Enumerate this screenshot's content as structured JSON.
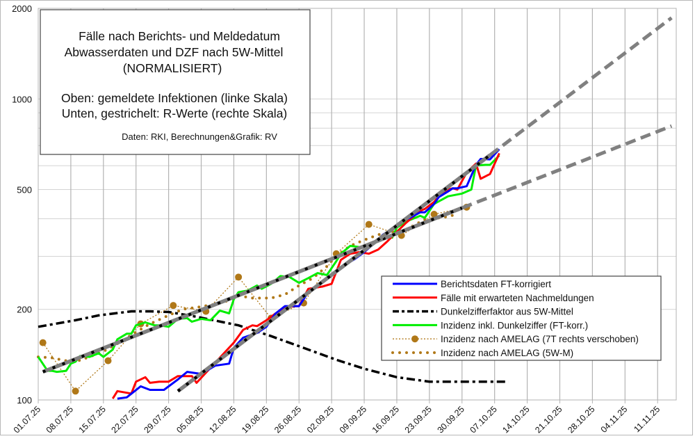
{
  "chart_data": {
    "type": "line",
    "yscale": "log",
    "ylim": [
      100,
      2000
    ],
    "xlim": [
      "01.07.25",
      "15.11.25"
    ],
    "grid": true,
    "legend_placement": "bottom-right",
    "y_ticks": [
      100,
      200,
      500,
      1000,
      2000
    ],
    "x_ticks": [
      "01.07.25",
      "08.07.25",
      "15.07.25",
      "22.07.25",
      "29.07.25",
      "05.08.25",
      "12.08.25",
      "19.08.25",
      "26.08.25",
      "02.09.25",
      "09.09.25",
      "16.09.25",
      "23.09.25",
      "30.09.25",
      "07.10.25",
      "14.10.25",
      "21.10.25",
      "28.10.25",
      "04.11.25",
      "11.11.25"
    ],
    "title_box": {
      "lines": [
        "Fälle nach Berichts- und Meldedatum",
        "Abwasserdaten und DZF nach 5W-Mittel",
        "(NORMALISIERT)",
        "",
        "Oben: gemeldete Infektionen (linke Skala)",
        "Unten, gestrichelt: R-Werte (rechte Skala)"
      ],
      "credit": "Daten: RKI, Berechnungen&Grafik: RV"
    },
    "series": [
      {
        "name": "Berichtsdaten FT-korrigiert",
        "color": "#0000ff",
        "style": "solid",
        "points": [
          [
            "18.07.25",
            101
          ],
          [
            "20.07.25",
            102
          ],
          [
            "23.07.25",
            111
          ],
          [
            "25.07.25",
            108
          ],
          [
            "28.07.25",
            108
          ],
          [
            "31.07.25",
            117
          ],
          [
            "02.08.25",
            124
          ],
          [
            "05.08.25",
            122
          ],
          [
            "08.08.25",
            130
          ],
          [
            "11.08.25",
            132
          ],
          [
            "12.08.25",
            149
          ],
          [
            "14.08.25",
            161
          ],
          [
            "17.08.25",
            167
          ],
          [
            "19.08.25",
            175
          ],
          [
            "21.08.25",
            194
          ],
          [
            "23.08.25",
            205
          ],
          [
            "26.08.25",
            205
          ],
          [
            "28.08.25",
            228
          ],
          [
            "30.08.25",
            240
          ],
          [
            "02.09.25",
            260
          ],
          [
            "05.09.25",
            282
          ],
          [
            "07.09.25",
            294
          ],
          [
            "09.09.25",
            310
          ],
          [
            "11.09.25",
            330
          ],
          [
            "13.09.25",
            354
          ],
          [
            "16.09.25",
            378
          ],
          [
            "18.09.25",
            398
          ],
          [
            "19.09.25",
            404
          ],
          [
            "21.09.25",
            420
          ],
          [
            "22.09.25",
            420
          ],
          [
            "24.09.25",
            448
          ],
          [
            "25.09.25",
            472
          ],
          [
            "27.09.25",
            493
          ],
          [
            "28.09.25",
            505
          ],
          [
            "29.09.25",
            505
          ],
          [
            "01.10.25",
            513
          ],
          [
            "03.10.25",
            604
          ],
          [
            "04.10.25",
            632
          ],
          [
            "06.10.25",
            630
          ],
          [
            "08.10.25",
            681
          ]
        ]
      },
      {
        "name": "Fälle mit erwarteten Nachmeldungen",
        "color": "#ff0000",
        "style": "solid",
        "points": [
          [
            "17.07.25",
            101
          ],
          [
            "18.07.25",
            107
          ],
          [
            "21.07.25",
            105
          ],
          [
            "22.07.25",
            115
          ],
          [
            "24.07.25",
            119
          ],
          [
            "25.07.25",
            114
          ],
          [
            "27.07.25",
            115
          ],
          [
            "29.07.25",
            115
          ],
          [
            "31.07.25",
            120
          ],
          [
            "03.08.25",
            120
          ],
          [
            "04.08.25",
            114
          ],
          [
            "12.08.25",
            155
          ],
          [
            "14.08.25",
            171
          ],
          [
            "16.08.25",
            177
          ],
          [
            "17.08.25",
            176
          ],
          [
            "19.08.25",
            184
          ],
          [
            "21.08.25",
            194
          ],
          [
            "23.08.25",
            202
          ],
          [
            "25.08.25",
            205
          ],
          [
            "26.08.25",
            205
          ],
          [
            "28.08.25",
            234
          ],
          [
            "31.08.25",
            238
          ],
          [
            "02.09.25",
            243
          ],
          [
            "04.09.25",
            292
          ],
          [
            "06.09.25",
            306
          ],
          [
            "08.09.25",
            310
          ],
          [
            "10.09.25",
            306
          ],
          [
            "12.09.25",
            316
          ],
          [
            "14.09.25",
            337
          ],
          [
            "16.09.25",
            362
          ],
          [
            "18.09.25",
            388
          ],
          [
            "21.09.25",
            425
          ],
          [
            "22.09.25",
            431
          ],
          [
            "24.09.25",
            455
          ],
          [
            "25.09.25",
            475
          ],
          [
            "27.09.25",
            500
          ],
          [
            "28.09.25",
            505
          ],
          [
            "29.09.25",
            500
          ],
          [
            "01.10.25",
            570
          ],
          [
            "03.10.25",
            610
          ],
          [
            "04.10.25",
            543
          ],
          [
            "06.10.25",
            563
          ],
          [
            "08.10.25",
            660
          ]
        ]
      },
      {
        "name": "Dunkelzifferfaktor aus 5W-Mittel",
        "color": "#000000",
        "style": "dashdot",
        "points": [
          [
            "01.07.25",
            175
          ],
          [
            "09.07.25",
            184
          ],
          [
            "14.07.25",
            191
          ],
          [
            "21.07.25",
            197
          ],
          [
            "25.07.25",
            197
          ],
          [
            "29.07.25",
            196
          ],
          [
            "04.08.25",
            189
          ],
          [
            "13.08.25",
            177
          ],
          [
            "20.08.25",
            163
          ],
          [
            "27.08.25",
            149
          ],
          [
            "03.09.25",
            136
          ],
          [
            "09.09.25",
            127
          ],
          [
            "16.09.25",
            119
          ],
          [
            "23.09.25",
            115
          ],
          [
            "30.09.25",
            115
          ],
          [
            "10.10.25",
            115
          ]
        ]
      },
      {
        "name": "Inzidenz inkl. Dunkelziffer (FT-korr.)",
        "color": "#00ee00",
        "style": "solid",
        "points": [
          [
            "01.07.25",
            139
          ],
          [
            "03.07.25",
            125
          ],
          [
            "04.07.25",
            125
          ],
          [
            "05.07.25",
            124
          ],
          [
            "07.07.25",
            125
          ],
          [
            "08.07.25",
            132
          ],
          [
            "09.07.25",
            134
          ],
          [
            "10.07.25",
            140
          ],
          [
            "12.07.25",
            139
          ],
          [
            "14.07.25",
            143
          ],
          [
            "15.07.25",
            139
          ],
          [
            "17.07.25",
            147
          ],
          [
            "18.07.25",
            159
          ],
          [
            "20.07.25",
            166
          ],
          [
            "21.07.25",
            166
          ],
          [
            "22.07.25",
            177
          ],
          [
            "24.07.25",
            181
          ],
          [
            "26.07.25",
            177
          ],
          [
            "27.07.25",
            177
          ],
          [
            "29.07.25",
            175
          ],
          [
            "31.07.25",
            186
          ],
          [
            "02.08.25",
            187
          ],
          [
            "03.08.25",
            182
          ],
          [
            "05.08.25",
            186
          ],
          [
            "07.08.25",
            184
          ],
          [
            "09.08.25",
            198
          ],
          [
            "11.08.25",
            194
          ],
          [
            "12.08.25",
            216
          ],
          [
            "13.08.25",
            228
          ],
          [
            "15.08.25",
            231
          ],
          [
            "17.08.25",
            240
          ],
          [
            "18.08.25",
            234
          ],
          [
            "20.08.25",
            243
          ],
          [
            "22.08.25",
            258
          ],
          [
            "24.08.25",
            256
          ],
          [
            "26.08.25",
            245
          ],
          [
            "28.08.25",
            254
          ],
          [
            "30.08.25",
            264
          ],
          [
            "01.09.25",
            260
          ],
          [
            "03.09.25",
            289
          ],
          [
            "04.09.25",
            306
          ],
          [
            "06.09.25",
            325
          ],
          [
            "08.09.25",
            322
          ],
          [
            "10.09.25",
            325
          ],
          [
            "12.09.25",
            340
          ],
          [
            "13.09.25",
            352
          ],
          [
            "15.09.25",
            346
          ],
          [
            "16.09.25",
            374
          ],
          [
            "18.09.25",
            392
          ],
          [
            "21.09.25",
            409
          ],
          [
            "22.09.25",
            403
          ],
          [
            "24.09.25",
            448
          ],
          [
            "27.09.25",
            475
          ],
          [
            "30.09.25",
            485
          ],
          [
            "02.10.25",
            500
          ],
          [
            "03.10.25",
            601
          ],
          [
            "05.10.25",
            604
          ],
          [
            "06.10.25",
            604
          ],
          [
            "08.10.25",
            649
          ]
        ]
      },
      {
        "name": "Inzidenz nach AMELAG (7T rechts verschoben)",
        "color": "#b07818",
        "style": "dotted-markers",
        "points": [
          [
            "02.07.25",
            155
          ],
          [
            "09.07.25",
            107
          ],
          [
            "16.07.25",
            135
          ],
          [
            "23.07.25",
            179
          ],
          [
            "30.07.25",
            206
          ],
          [
            "06.08.25",
            197
          ],
          [
            "13.08.25",
            256
          ],
          [
            "20.08.25",
            187
          ],
          [
            "27.08.25",
            210
          ],
          [
            "03.09.25",
            306
          ],
          [
            "10.09.25",
            383
          ],
          [
            "17.09.25",
            352
          ],
          [
            "24.09.25",
            414
          ],
          [
            "01.10.25",
            437
          ]
        ]
      },
      {
        "name": "Inzidenz nach AMELAG (5W-M)",
        "color": "#b07818",
        "style": "dotted-thick",
        "points": [
          [
            "01.07.25",
            139
          ],
          [
            "04.07.25",
            138
          ],
          [
            "07.07.25",
            135
          ],
          [
            "09.07.25",
            134
          ],
          [
            "12.07.25",
            139
          ],
          [
            "15.07.25",
            145
          ],
          [
            "19.07.25",
            157
          ],
          [
            "22.07.25",
            168
          ],
          [
            "25.07.25",
            179
          ],
          [
            "29.07.25",
            191
          ],
          [
            "01.08.25",
            200
          ],
          [
            "04.08.25",
            203
          ],
          [
            "08.08.25",
            208
          ],
          [
            "11.08.25",
            214
          ],
          [
            "13.08.25",
            222
          ],
          [
            "16.08.25",
            218
          ],
          [
            "20.08.25",
            218
          ],
          [
            "23.08.25",
            224
          ],
          [
            "26.08.25",
            240
          ],
          [
            "29.08.25",
            254
          ],
          [
            "01.09.25",
            278
          ],
          [
            "03.09.25",
            301
          ],
          [
            "06.09.25",
            325
          ],
          [
            "09.09.25",
            340
          ],
          [
            "12.09.25",
            354
          ],
          [
            "15.09.25",
            362
          ],
          [
            "18.09.25",
            368
          ],
          [
            "22.09.25",
            398
          ],
          [
            "26.09.25",
            404
          ],
          [
            "29.09.25",
            414
          ]
        ]
      }
    ],
    "trend_lines": [
      {
        "start": [
          "02.07.25",
          124
        ],
        "end": [
          "14.11.25",
          813
        ],
        "fit_until": "30.09.25",
        "color": "#808080"
      },
      {
        "start": [
          "31.07.25",
          107
        ],
        "end": [
          "14.11.25",
          1860
        ],
        "fit_until": "06.10.25",
        "color": "#808080"
      }
    ]
  }
}
